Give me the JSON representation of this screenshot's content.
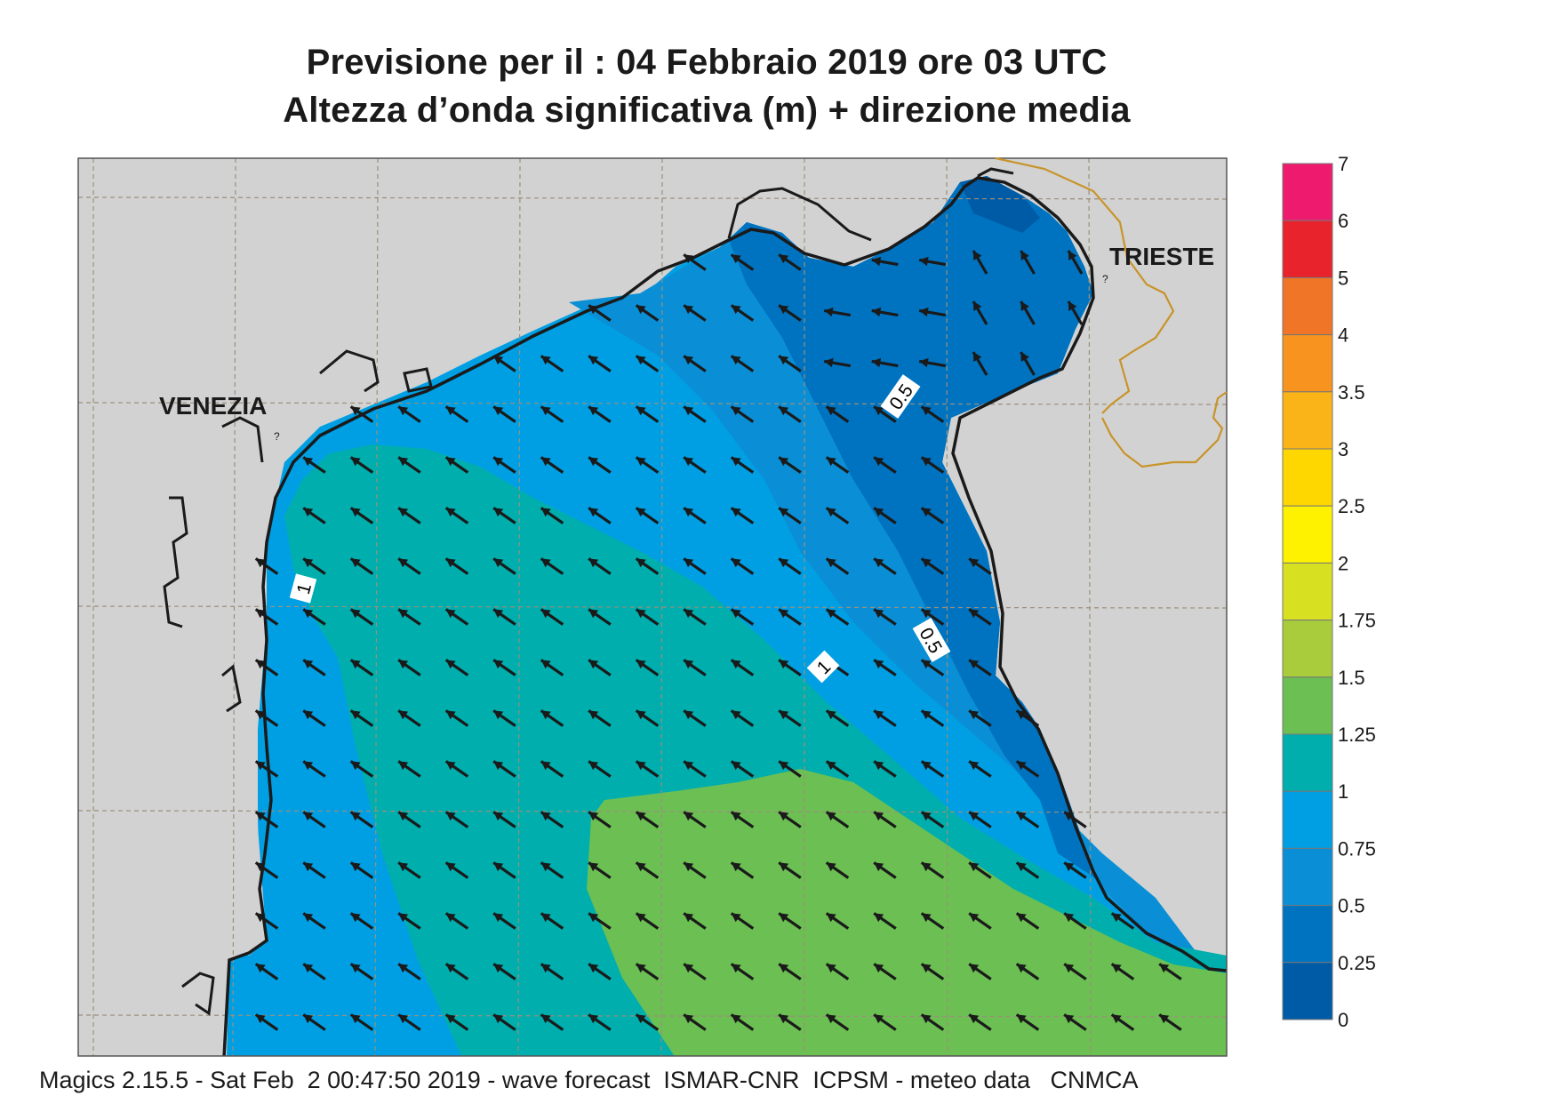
{
  "header": {
    "title_line1": "Previsione per il  :  04  Febbraio 2019   ore 03 UTC",
    "title_line2": "Altezza d’onda significativa (m) + direzione media"
  },
  "places": {
    "venezia": "VENEZIA",
    "trieste": "TRIESTE"
  },
  "contour_labels": [
    "1",
    "0.5",
    "0.5",
    "1"
  ],
  "legend": {
    "labels": [
      "7",
      "6",
      "5",
      "4",
      "3.5",
      "3",
      "2.5",
      "2",
      "1.75",
      "1.5",
      "1.25",
      "1",
      "0.75",
      "0.5",
      "0.25",
      "0"
    ],
    "colors": [
      "#ee1a6e",
      "#e8232b",
      "#f17526",
      "#f7931e",
      "#fbb417",
      "#ffd700",
      "#fff200",
      "#d7e021",
      "#a8cc3b",
      "#6cbf53",
      "#00aeae",
      "#009fe3",
      "#0a8fd6",
      "#0073c0",
      "#005ba6"
    ]
  },
  "map_colors": {
    "land": "#d2d2d2",
    "class_0_0.25": "#005ba6",
    "class_0.25_0.5": "#0073c0",
    "class_0.5_0.75": "#0a8fd6",
    "class_0.75_1": "#009fe3",
    "class_1_1.25": "#00aeae",
    "class_1.25_1.5": "#6cbf53",
    "border": "#c8942a"
  },
  "arrows": {
    "direction": "towards north-west (from south-east)"
  },
  "footer": {
    "text": "Magics 2.15.5 - Sat Feb  2 00:47:50 2019 - wave forecast  ISMAR-CNR  ICPSM - meteo data   CNMCA"
  }
}
